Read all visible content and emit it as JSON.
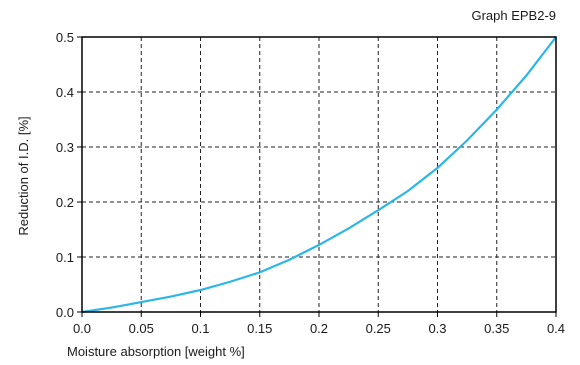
{
  "chart_data": {
    "type": "line",
    "title": "Graph EPB2-9",
    "xlabel": "Moisture absorption [weight %]",
    "ylabel": "Reduction of I.D. [%]",
    "xlim": [
      0,
      0.4
    ],
    "ylim": [
      0,
      0.5
    ],
    "x_ticks": [
      0,
      0.05,
      0.1,
      0.15,
      0.2,
      0.25,
      0.3,
      0.35,
      0.4
    ],
    "x_tick_labels": [
      "0.0",
      "0.05",
      "0.1",
      "0.15",
      "0.2",
      "0.25",
      "0.3",
      "0.35",
      "0.4"
    ],
    "y_ticks": [
      0,
      0.1,
      0.2,
      0.3,
      0.4,
      0.5
    ],
    "y_tick_labels": [
      "0.0",
      "0.1",
      "0.2",
      "0.3",
      "0.4",
      "0.5"
    ],
    "grid": true,
    "grid_style": "dashed",
    "line_color": "#2bb6e8",
    "series": [
      {
        "x": [
          0,
          0.025,
          0.05,
          0.075,
          0.1,
          0.125,
          0.15,
          0.175,
          0.2,
          0.225,
          0.25,
          0.275,
          0.3,
          0.325,
          0.35,
          0.375,
          0.4
        ],
        "y": [
          0.0,
          0.008,
          0.018,
          0.028,
          0.04,
          0.055,
          0.072,
          0.095,
          0.122,
          0.152,
          0.185,
          0.22,
          0.262,
          0.312,
          0.368,
          0.43,
          0.5
        ]
      }
    ]
  }
}
